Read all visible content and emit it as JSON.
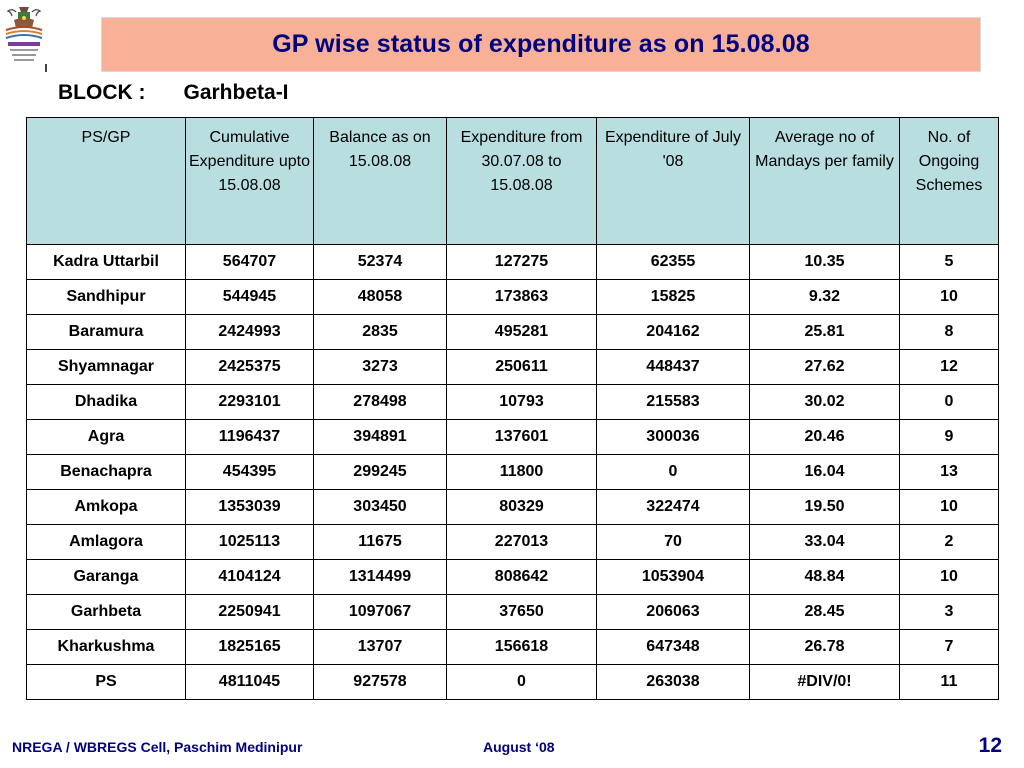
{
  "title": "GP wise status of expenditure as on 15.08.08",
  "block": {
    "label": "BLOCK :",
    "value": "Garhbeta-I"
  },
  "table": {
    "headers": [
      "PS/GP",
      "Cumulative Expenditure upto 15.08.08",
      "Balance as on 15.08.08",
      "Expenditure from 30.07.08 to 15.08.08",
      "Expenditure of  July '08",
      "Average no of Mandays per family",
      "No. of Ongoing Schemes"
    ],
    "rows": [
      [
        "Kadra Uttarbil",
        "564707",
        "52374",
        "127275",
        "62355",
        "10.35",
        "5"
      ],
      [
        "Sandhipur",
        "544945",
        "48058",
        "173863",
        "15825",
        "9.32",
        "10"
      ],
      [
        "Baramura",
        "2424993",
        "2835",
        "495281",
        "204162",
        "25.81",
        "8"
      ],
      [
        "Shyamnagar",
        "2425375",
        "3273",
        "250611",
        "448437",
        "27.62",
        "12"
      ],
      [
        "Dhadika",
        "2293101",
        "278498",
        "10793",
        "215583",
        "30.02",
        "0"
      ],
      [
        "Agra",
        "1196437",
        "394891",
        "137601",
        "300036",
        "20.46",
        "9"
      ],
      [
        "Benachapra",
        "454395",
        "299245",
        "11800",
        "0",
        "16.04",
        "13"
      ],
      [
        "Amkopa",
        "1353039",
        "303450",
        "80329",
        "322474",
        "19.50",
        "10"
      ],
      [
        "Amlagora",
        "1025113",
        "11675",
        "227013",
        "70",
        "33.04",
        "2"
      ],
      [
        "Garanga",
        "4104124",
        "1314499",
        "808642",
        "1053904",
        "48.84",
        "10"
      ],
      [
        "Garhbeta",
        "2250941",
        "1097067",
        "37650",
        "206063",
        "28.45",
        "3"
      ],
      [
        "Kharkushma",
        "1825165",
        "13707",
        "156618",
        "647348",
        "26.78",
        "7"
      ],
      [
        "PS",
        "4811045",
        "927578",
        "0",
        "263038",
        "#DIV/0!",
        "11"
      ]
    ]
  },
  "footer": {
    "left": "NREGA / WBREGS Cell, Paschim Medinipur",
    "middle": "August ‘08",
    "page": "12"
  },
  "colors": {
    "title_background": "#f8b197",
    "title_text": "#000080",
    "header_background": "#b8dee0",
    "footer_text": "#000080"
  },
  "icons": {
    "logo": "nrega-emblem-logo"
  }
}
